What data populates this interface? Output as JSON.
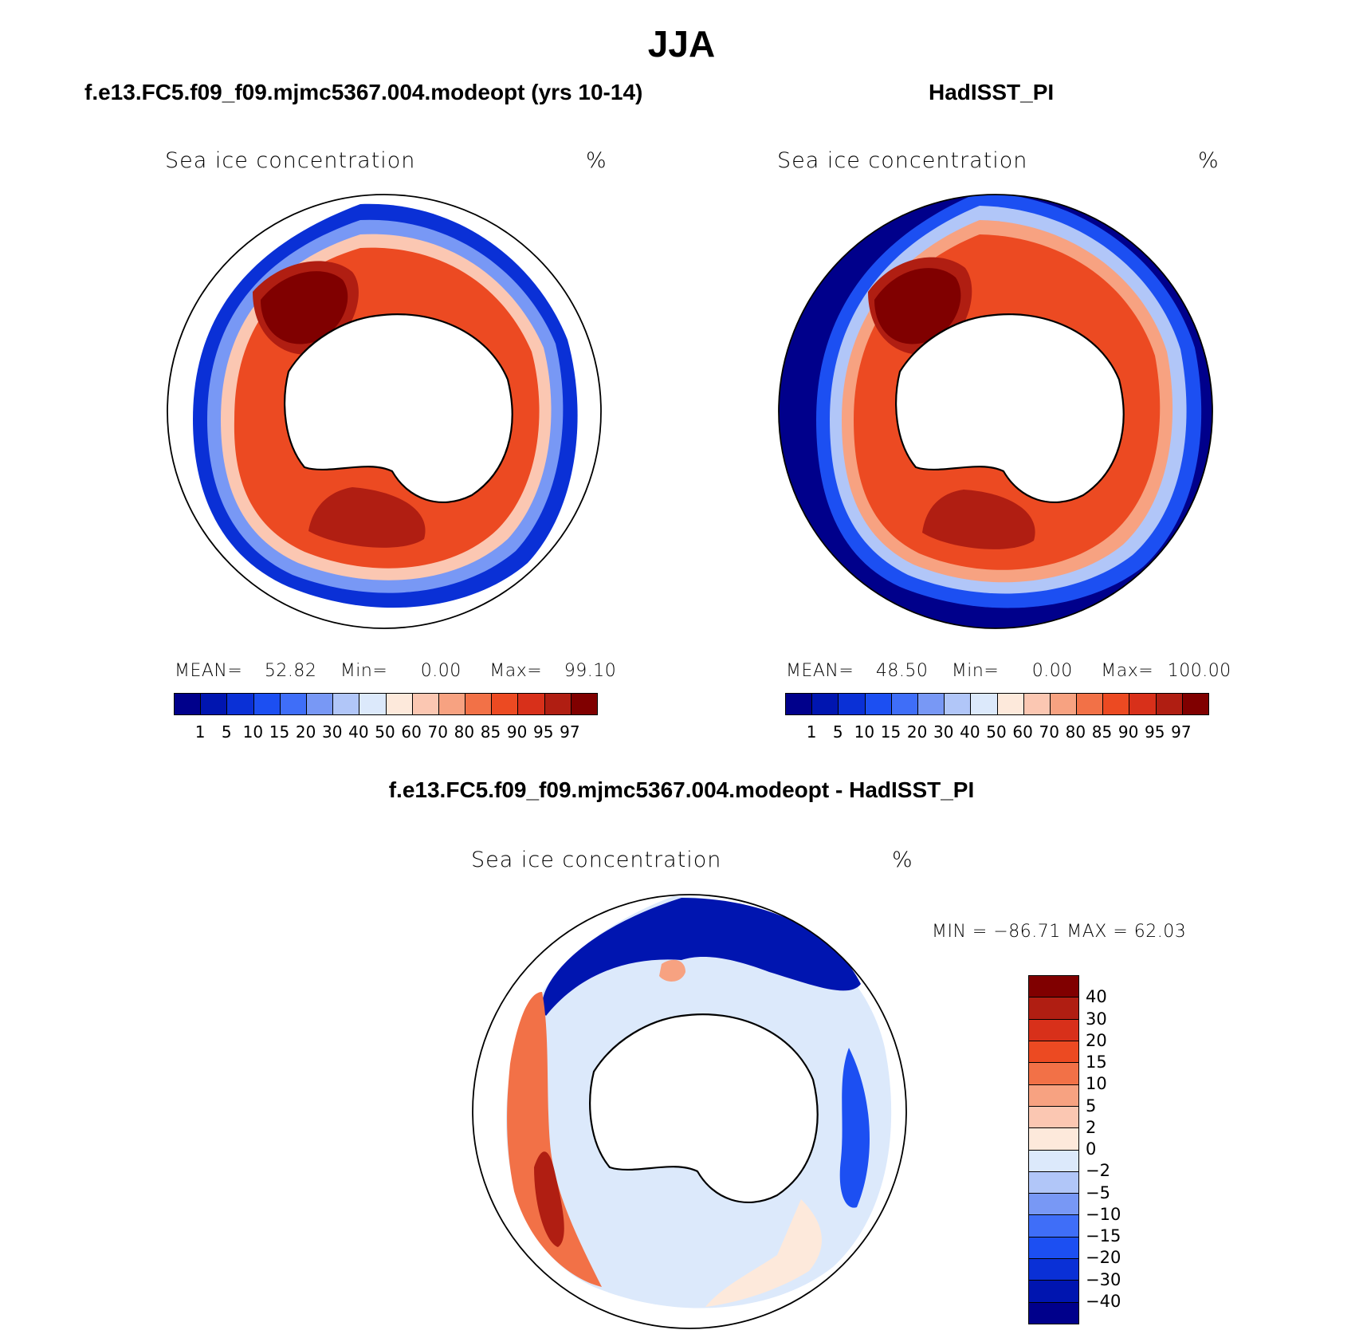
{
  "title": "JJA",
  "panels": [
    {
      "case": "f.e13.FC5.f09_f09.mjmc5367.004.modeopt (yrs 10-14)",
      "variable": "Sea ice concentration",
      "units": "%",
      "stats": {
        "mean_label": "MEAN=",
        "mean": "52.82",
        "min_label": "Min=",
        "min": "0.00",
        "max_label": "Max=",
        "max": "99.10"
      }
    },
    {
      "case": "HadISST_PI",
      "variable": "Sea ice concentration",
      "units": "%",
      "stats": {
        "mean_label": "MEAN=",
        "mean": "48.50",
        "min_label": "Min=",
        "min": "0.00",
        "max_label": "Max=",
        "max": "100.00"
      }
    }
  ],
  "diff": {
    "title": "f.e13.FC5.f09_f09.mjmc5367.004.modeopt - HadISST_PI",
    "variable": "Sea ice concentration",
    "units": "%",
    "minmax": "MIN = −86.71  MAX =   62.03"
  },
  "abs_colorbar": {
    "labels": [
      "1",
      "5",
      "10",
      "15",
      "20",
      "30",
      "40",
      "50",
      "60",
      "70",
      "80",
      "85",
      "90",
      "95",
      "97"
    ],
    "colors": [
      "#00008b",
      "#0015b0",
      "#0a30d6",
      "#1c4ff2",
      "#3f6ef8",
      "#7898f5",
      "#b1c6f8",
      "#dce9fb",
      "#fde9db",
      "#fbc7b2",
      "#f7a281",
      "#f27147",
      "#ec4a22",
      "#d8301a",
      "#b01e12",
      "#800000"
    ]
  },
  "diff_colorbar": {
    "labels": [
      "40",
      "30",
      "20",
      "15",
      "10",
      "5",
      "2",
      "0",
      "−2",
      "−5",
      "−10",
      "−15",
      "−20",
      "−30",
      "−40"
    ],
    "colors": [
      "#800000",
      "#b01e12",
      "#d8301a",
      "#ec4a22",
      "#f27147",
      "#f7a281",
      "#fbc7b2",
      "#fde9db",
      "#dce9fb",
      "#b1c6f8",
      "#7898f5",
      "#3f6ef8",
      "#1c4ff2",
      "#0a30d6",
      "#0015b0",
      "#00008b"
    ]
  }
}
